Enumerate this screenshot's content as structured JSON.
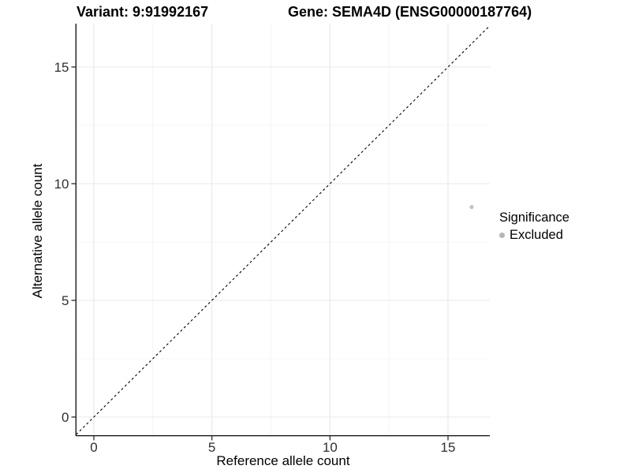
{
  "titles": {
    "variant": "Variant: 9:91992167",
    "gene": "Gene: SEMA4D (ENSG00000187764)"
  },
  "legend": {
    "title": "Significance",
    "items": [
      {
        "label": "Excluded",
        "color": "#b5b5b5"
      }
    ]
  },
  "colors": {
    "background": "#ffffff",
    "axis_line": "#1a1a1a",
    "tick_label": "#303030",
    "grid_major": "#e8e8e8",
    "grid_minor": "#f4f4f4",
    "identity_line": "#000000",
    "point": "#c2c2c2"
  },
  "chart_data": {
    "type": "scatter",
    "title": "Variant: 9:91992167   Gene: SEMA4D (ENSG00000187764)",
    "xlabel": "Reference allele count",
    "ylabel": "Alternative allele count",
    "xlim": [
      -0.75,
      16.75
    ],
    "ylim": [
      -0.75,
      16.75
    ],
    "x_ticks": [
      0,
      5,
      10,
      15
    ],
    "y_ticks": [
      0,
      5,
      10,
      15
    ],
    "grid": true,
    "legend_position": "right",
    "reference_line": {
      "type": "identity y=x",
      "style": "dashed",
      "color": "#000000"
    },
    "series": [
      {
        "name": "Excluded",
        "color": "#c2c2c2",
        "points": [
          {
            "x": 16,
            "y": 9
          }
        ]
      }
    ]
  }
}
